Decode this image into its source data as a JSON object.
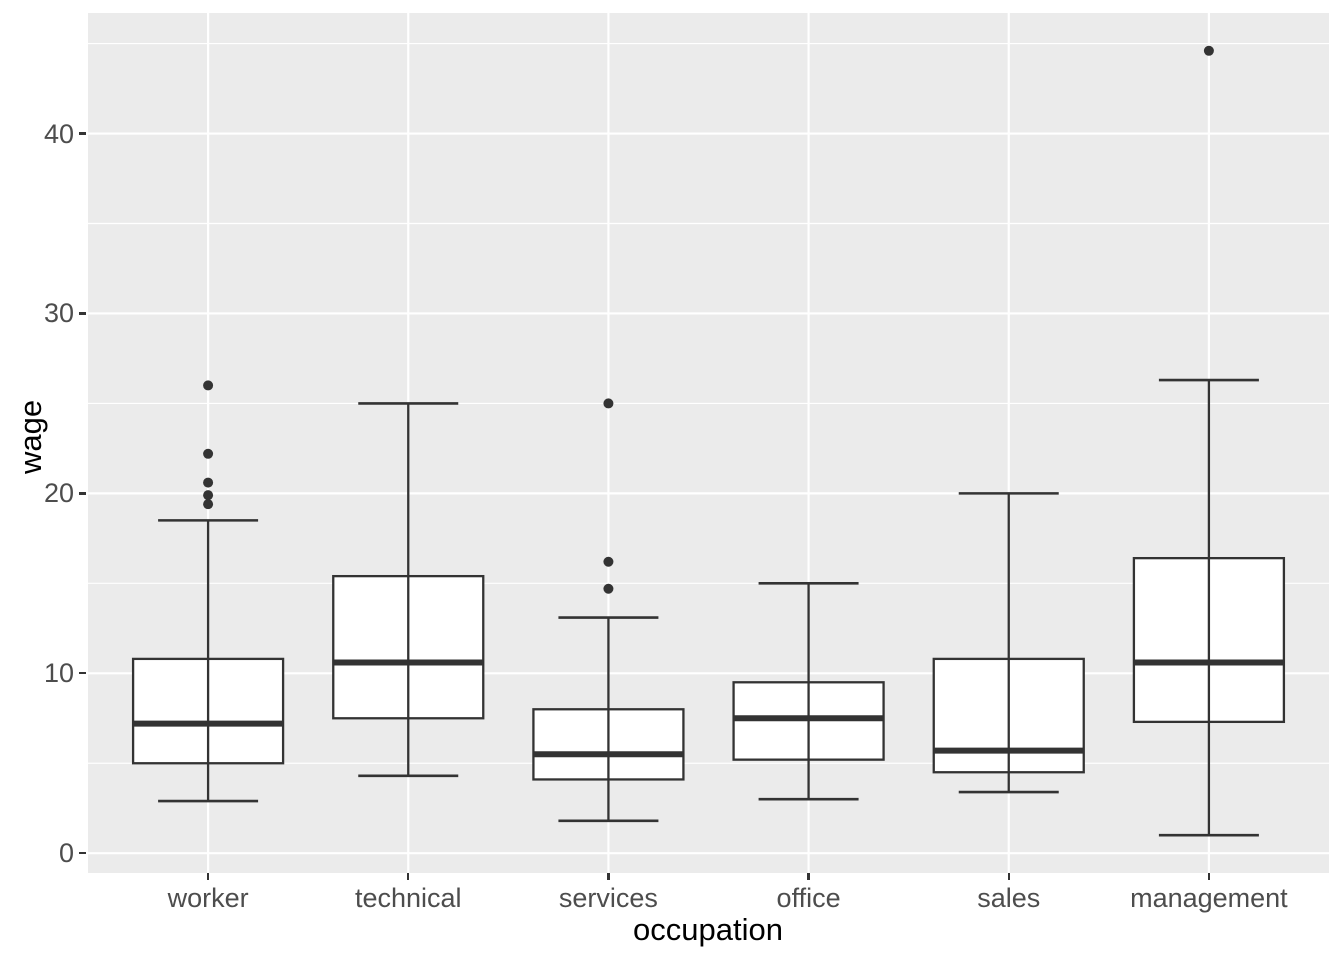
{
  "chart_data": {
    "type": "boxplot",
    "title": "",
    "xlabel": "occupation",
    "ylabel": "wage",
    "categories": [
      "worker",
      "technical",
      "services",
      "office",
      "sales",
      "management"
    ],
    "y_ticks": [
      0,
      10,
      20,
      30,
      40
    ],
    "y_minor_ticks": [
      5,
      15,
      25,
      35,
      45
    ],
    "ylim": [
      -1.1,
      46.7
    ],
    "grid": "on",
    "legend": "none",
    "series": [
      {
        "category": "worker",
        "whisker_low": 2.9,
        "q1": 5.0,
        "median": 7.2,
        "q3": 10.8,
        "whisker_high": 18.5,
        "outliers": [
          19.4,
          19.9,
          20.6,
          22.2,
          26.0
        ]
      },
      {
        "category": "technical",
        "whisker_low": 4.3,
        "q1": 7.5,
        "median": 10.6,
        "q3": 15.4,
        "whisker_high": 25.0,
        "outliers": []
      },
      {
        "category": "services",
        "whisker_low": 1.8,
        "q1": 4.1,
        "median": 5.5,
        "q3": 8.0,
        "whisker_high": 13.1,
        "outliers": [
          14.7,
          16.2,
          25.0
        ]
      },
      {
        "category": "office",
        "whisker_low": 3.0,
        "q1": 5.2,
        "median": 7.5,
        "q3": 9.5,
        "whisker_high": 15.0,
        "outliers": []
      },
      {
        "category": "sales",
        "whisker_low": 3.4,
        "q1": 4.5,
        "median": 5.7,
        "q3": 10.8,
        "whisker_high": 20.0,
        "outliers": []
      },
      {
        "category": "management",
        "whisker_low": 1.0,
        "q1": 7.3,
        "median": 10.6,
        "q3": 16.4,
        "whisker_high": 26.3,
        "outliers": [
          44.6
        ]
      }
    ]
  },
  "style": {
    "panel_bg": "#EBEBEB",
    "grid_color": "#FFFFFF",
    "line_color": "#333333",
    "box_fill": "#FFFFFF",
    "tick_label_color": "#4D4D4D",
    "axis_title_color": "#000000",
    "line_width": 2.3,
    "median_width": 6,
    "cap_width": 2.6,
    "box_half_width": 75,
    "cap_half_width": 50,
    "outlier_radius": 5
  }
}
